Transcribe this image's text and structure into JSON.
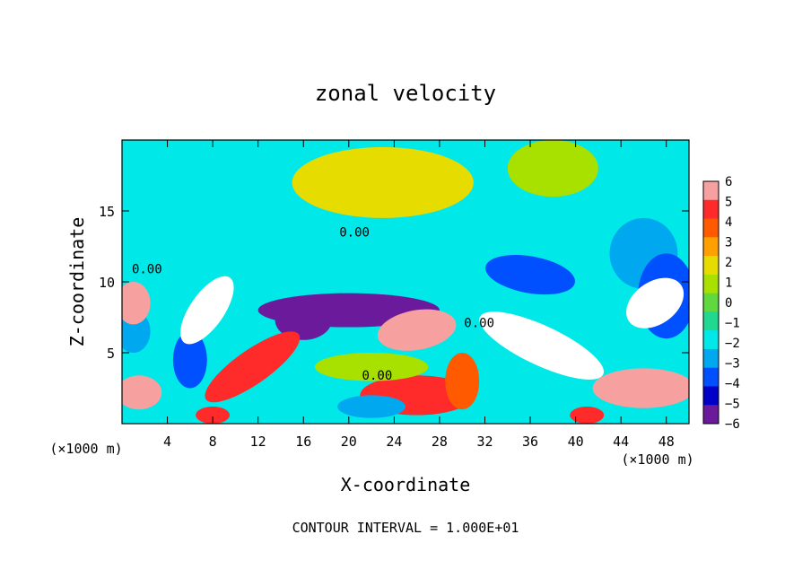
{
  "chart_data": {
    "type": "heatmap",
    "title": "zonal velocity",
    "xlabel": "X-coordinate",
    "ylabel": "Z-coordinate",
    "x_unit_left": "(×1000 m)",
    "x_unit_right": "(×1000 m)",
    "footer": "CONTOUR INTERVAL = 1.000E+01",
    "xlim": [
      0,
      50
    ],
    "ylim": [
      0,
      20
    ],
    "x_ticks": [
      4,
      8,
      12,
      16,
      20,
      24,
      28,
      32,
      36,
      40,
      44,
      48
    ],
    "y_ticks": [
      5,
      10,
      15
    ],
    "colorbar_ticks": [
      6,
      5,
      4,
      3,
      2,
      1,
      0,
      -1,
      -2,
      -3,
      -4,
      -5,
      -6
    ],
    "colorbar_range": [
      -6,
      6
    ],
    "colorbar_colors": [
      "#f7a0a0",
      "#ff2a2a",
      "#ff5a00",
      "#ffa000",
      "#e6dc00",
      "#a8e000",
      "#60d840",
      "#20d890",
      "#00e8e8",
      "#00a8f0",
      "#0050ff",
      "#0000c8",
      "#6a1a9a"
    ],
    "contour_labels": [
      {
        "text": "0.00",
        "x": 20.5,
        "y": 13.2
      },
      {
        "text": "0.00",
        "x": 2.2,
        "y": 10.6
      },
      {
        "text": "0.00",
        "x": 22.5,
        "y": 3.1
      },
      {
        "text": "0.00",
        "x": 31.5,
        "y": 6.8
      }
    ],
    "features": [
      {
        "v": 2.0,
        "x": 23,
        "y": 17,
        "rx": 8,
        "ry": 2.5,
        "rot": 0
      },
      {
        "v": 1.5,
        "x": 38,
        "y": 18,
        "rx": 4,
        "ry": 2,
        "rot": 0
      },
      {
        "v": -2.5,
        "x": 46,
        "y": 12,
        "rx": 3,
        "ry": 2.5,
        "rot": 0
      },
      {
        "v": -2.0,
        "x": 24,
        "y": 10.8,
        "rx": 9,
        "ry": 1.2,
        "rot": 0
      },
      {
        "v": -5.5,
        "x": 20,
        "y": 8,
        "rx": 8,
        "ry": 1.2,
        "rot": 0
      },
      {
        "v": -4.0,
        "x": 36,
        "y": 10.5,
        "rx": 4,
        "ry": 1.3,
        "rot": -10
      },
      {
        "v": -6.0,
        "x": 16,
        "y": 7.3,
        "rx": 2.5,
        "ry": 1.4,
        "rot": 0
      },
      {
        "v": -4.0,
        "x": 48,
        "y": 9,
        "rx": 2.5,
        "ry": 3,
        "rot": 0
      },
      {
        "v": -3.5,
        "x": 6,
        "y": 4.5,
        "rx": 1.5,
        "ry": 2,
        "rot": 0
      },
      {
        "v": -3.0,
        "x": 1,
        "y": 6.5,
        "rx": 1.5,
        "ry": 1.5,
        "rot": 0
      },
      {
        "v": 6.5,
        "x": 7.5,
        "y": 8,
        "rx": 3.5,
        "ry": 1.2,
        "rot": 55
      },
      {
        "v": 5.0,
        "x": 11.5,
        "y": 4,
        "rx": 5,
        "ry": 1.2,
        "rot": 35
      },
      {
        "v": 5.0,
        "x": 26,
        "y": 2,
        "rx": 5,
        "ry": 1.4,
        "rot": 0
      },
      {
        "v": 6.5,
        "x": 37,
        "y": 5.5,
        "rx": 6,
        "ry": 1.4,
        "rot": -25
      },
      {
        "v": 6.0,
        "x": 46,
        "y": 2.5,
        "rx": 4.5,
        "ry": 1.4,
        "rot": 0
      },
      {
        "v": 6.0,
        "x": 1.5,
        "y": 2.2,
        "rx": 2,
        "ry": 1.2,
        "rot": 0
      },
      {
        "v": 6.0,
        "x": 26,
        "y": 6.6,
        "rx": 3.5,
        "ry": 1.4,
        "rot": 10
      },
      {
        "v": 4.0,
        "x": 30,
        "y": 3,
        "rx": 1.5,
        "ry": 2,
        "rot": 0
      },
      {
        "v": 6.5,
        "x": 47,
        "y": 8.5,
        "rx": 2.8,
        "ry": 1.5,
        "rot": 35
      },
      {
        "v": 6.0,
        "x": 1,
        "y": 8.5,
        "rx": 1.5,
        "ry": 1.5,
        "rot": 0
      },
      {
        "v": 5.0,
        "x": 41,
        "y": 0.6,
        "rx": 1.5,
        "ry": 0.6,
        "rot": 0
      },
      {
        "v": 5.0,
        "x": 8,
        "y": 0.6,
        "rx": 1.5,
        "ry": 0.6,
        "rot": 0
      },
      {
        "v": 1.5,
        "x": 22,
        "y": 4,
        "rx": 5,
        "ry": 1,
        "rot": 0
      },
      {
        "v": -3.0,
        "x": 22,
        "y": 1.2,
        "rx": 3,
        "ry": 0.8,
        "rot": 0
      }
    ]
  }
}
